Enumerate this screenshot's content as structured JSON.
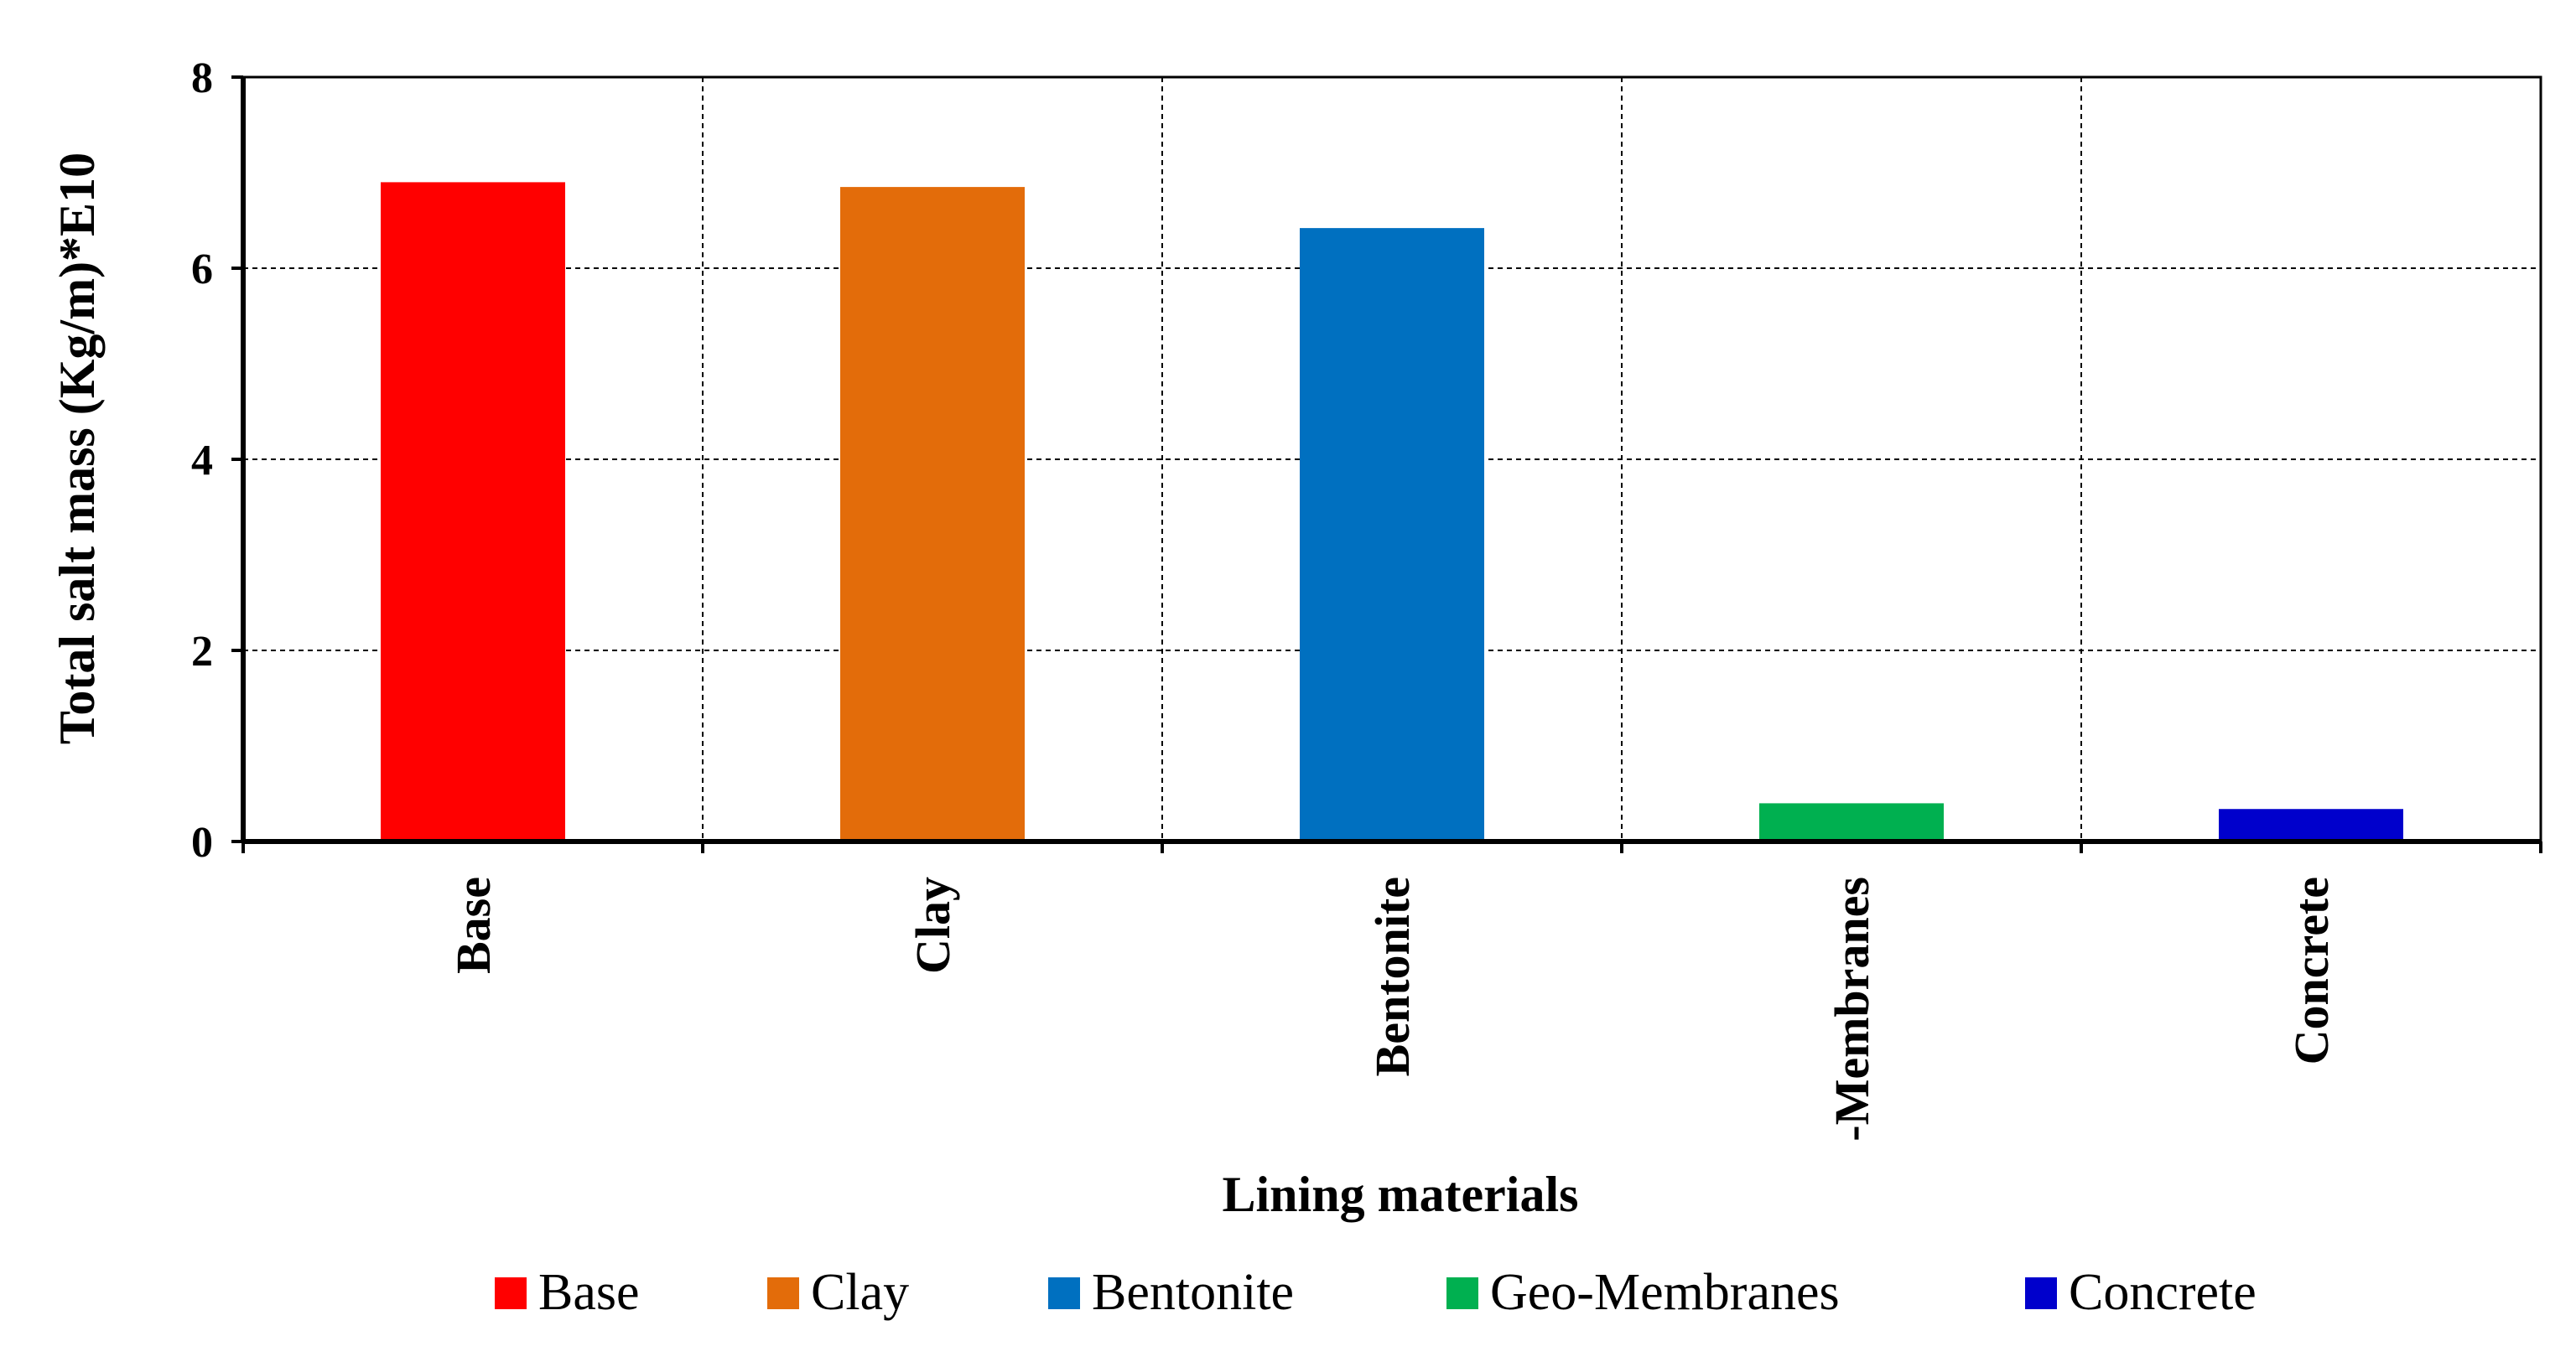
{
  "chart_data": {
    "type": "bar",
    "categories": [
      "Base",
      "Clay",
      "Bentonite",
      "-Membranes",
      "Concrete"
    ],
    "values": [
      6.9,
      6.85,
      6.42,
      0.4,
      0.34
    ],
    "colors": [
      "#ff0000",
      "#e36c0a",
      "#0070c0",
      "#00b050",
      "#0000cc"
    ],
    "xlabel": "Lining  materials",
    "ylabel": "Total salt mass (Kg/m)*E10",
    "ylim": [
      0,
      8
    ],
    "yticks": [
      "0",
      "2",
      "4",
      "6",
      "8"
    ],
    "grid": true,
    "legend": {
      "placement": "bottom",
      "entries": [
        "Base",
        "Clay",
        "Bentonite",
        "Geo-Membranes",
        "Concrete"
      ]
    }
  }
}
